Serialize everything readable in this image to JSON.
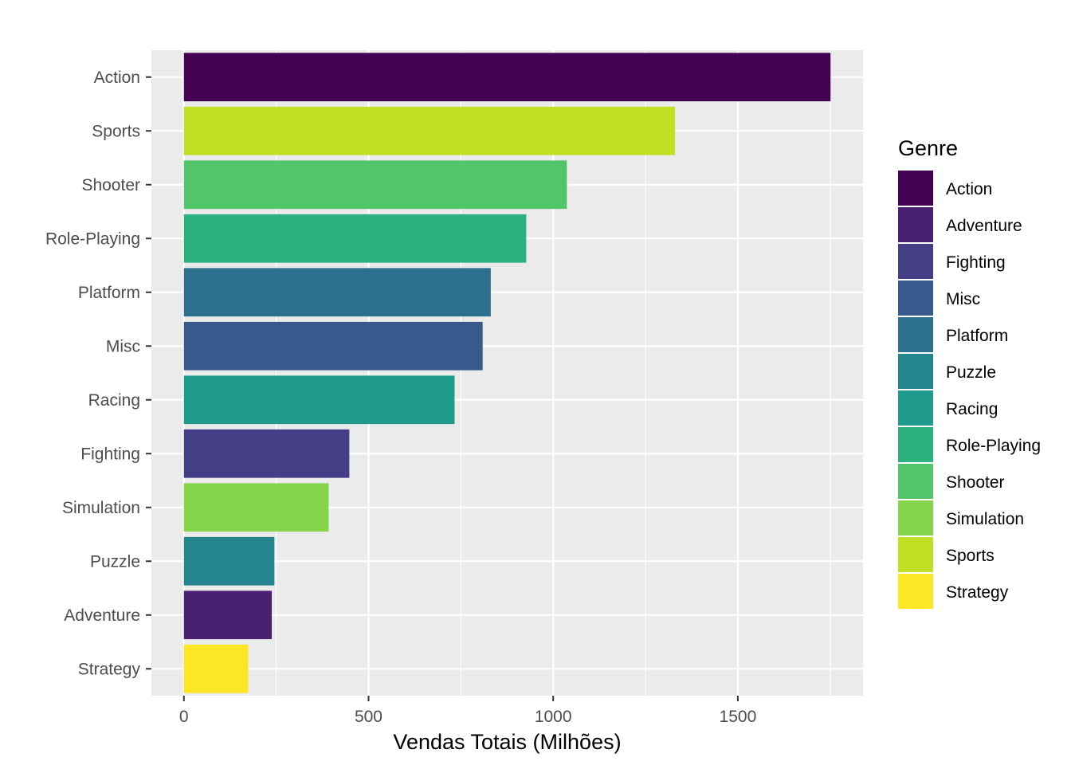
{
  "chart_data": {
    "type": "bar",
    "orientation": "horizontal",
    "categories": [
      "Action",
      "Sports",
      "Shooter",
      "Role-Playing",
      "Platform",
      "Misc",
      "Racing",
      "Fighting",
      "Simulation",
      "Puzzle",
      "Adventure",
      "Strategy"
    ],
    "values": [
      1751,
      1330,
      1037,
      927,
      831,
      809,
      733,
      448,
      392,
      245,
      238,
      174
    ],
    "title": "",
    "xlabel": "Vendas Totais (Milhões)",
    "ylabel": "",
    "xlim": [
      -88,
      1839
    ],
    "x_ticks": [
      0,
      500,
      1000,
      1500
    ],
    "x_tick_labels": [
      "0",
      "500",
      "1000",
      "1500"
    ],
    "grid": true,
    "legend": {
      "title": "Genre",
      "position": "right",
      "items": [
        {
          "label": "Action",
          "color": "#440154"
        },
        {
          "label": "Adventure",
          "color": "#482173"
        },
        {
          "label": "Fighting",
          "color": "#433E85"
        },
        {
          "label": "Misc",
          "color": "#38598C"
        },
        {
          "label": "Platform",
          "color": "#2D708E"
        },
        {
          "label": "Puzzle",
          "color": "#25858E"
        },
        {
          "label": "Racing",
          "color": "#1E9B8A"
        },
        {
          "label": "Role-Playing",
          "color": "#2BB07F"
        },
        {
          "label": "Shooter",
          "color": "#51C56A"
        },
        {
          "label": "Simulation",
          "color": "#85D54A"
        },
        {
          "label": "Sports",
          "color": "#C2DF23"
        },
        {
          "label": "Strategy",
          "color": "#FDE725"
        }
      ]
    },
    "colors": {
      "panel_background": "#EBEBEB",
      "grid_line": "#FFFFFF"
    }
  }
}
